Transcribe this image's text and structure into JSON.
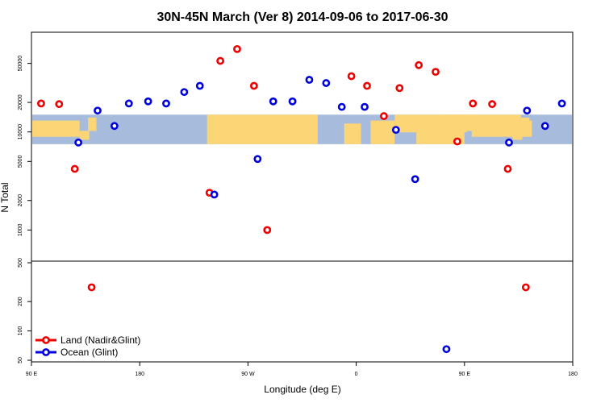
{
  "chart_data": {
    "type": "scatter",
    "title": "30N-45N March (Ver 8)   2014-09-06 to 2017-06-30",
    "xlabel": "Longitude (deg E)",
    "ylabel": "N Total",
    "x_ticks": [
      {
        "value": 90,
        "label": "90 E"
      },
      {
        "value": 180,
        "label": "180"
      },
      {
        "value": 270,
        "label": "90 W"
      },
      {
        "value": 360,
        "label": "0"
      },
      {
        "value": 450,
        "label": "90 E"
      },
      {
        "value": 540,
        "label": "180"
      }
    ],
    "xlim": [
      90,
      540
    ],
    "upper_panel": {
      "scale": "log",
      "ylim": [
        500,
        100000
      ],
      "y_ticks": [
        {
          "value": 1000,
          "label": "1000"
        },
        {
          "value": 2000,
          "label": "2000"
        },
        {
          "value": 5000,
          "label": "5000"
        },
        {
          "value": 10000,
          "label": "10000"
        },
        {
          "value": 20000,
          "label": "20000"
        },
        {
          "value": 50000,
          "label": "50000"
        }
      ],
      "map_band": [
        7500,
        15000
      ]
    },
    "lower_panel": {
      "scale": "log",
      "ylim": [
        50,
        500
      ],
      "y_ticks": [
        {
          "value": 50,
          "label": "50"
        },
        {
          "value": 100,
          "label": "100"
        },
        {
          "value": 200,
          "label": "200"
        },
        {
          "value": 500,
          "label": "500"
        }
      ]
    },
    "series": [
      {
        "name": "Land (Nadir&Glint)",
        "color": "#ee0000",
        "points": [
          [
            98,
            19500
          ],
          [
            113,
            19200
          ],
          [
            126,
            4200
          ],
          [
            140,
            280
          ],
          [
            238,
            2400
          ],
          [
            247,
            53000
          ],
          [
            261,
            70000
          ],
          [
            275,
            29500
          ],
          [
            286,
            1000
          ],
          [
            356,
            37000
          ],
          [
            369,
            29500
          ],
          [
            383,
            14500
          ],
          [
            396,
            28000
          ],
          [
            412,
            48000
          ],
          [
            426,
            41000
          ],
          [
            444,
            8000
          ],
          [
            457,
            19500
          ],
          [
            473,
            19200
          ],
          [
            486,
            4200
          ],
          [
            501,
            280
          ]
        ]
      },
      {
        "name": "Ocean (Glint)",
        "color": "#0000dd",
        "points": [
          [
            129,
            7800
          ],
          [
            145,
            16500
          ],
          [
            159,
            11500
          ],
          [
            171,
            19500
          ],
          [
            187,
            20500
          ],
          [
            202,
            19500
          ],
          [
            217,
            25500
          ],
          [
            230,
            29500
          ],
          [
            242,
            2300
          ],
          [
            278,
            5300
          ],
          [
            291,
            20500
          ],
          [
            307,
            20500
          ],
          [
            321,
            34000
          ],
          [
            335,
            31500
          ],
          [
            348,
            18000
          ],
          [
            367,
            18000
          ],
          [
            393,
            10500
          ],
          [
            409,
            3300
          ],
          [
            435,
            65
          ],
          [
            487,
            7800
          ],
          [
            502,
            16500
          ],
          [
            517,
            11500
          ],
          [
            531,
            19500
          ]
        ]
      }
    ],
    "legend_position": "bottom-left"
  }
}
